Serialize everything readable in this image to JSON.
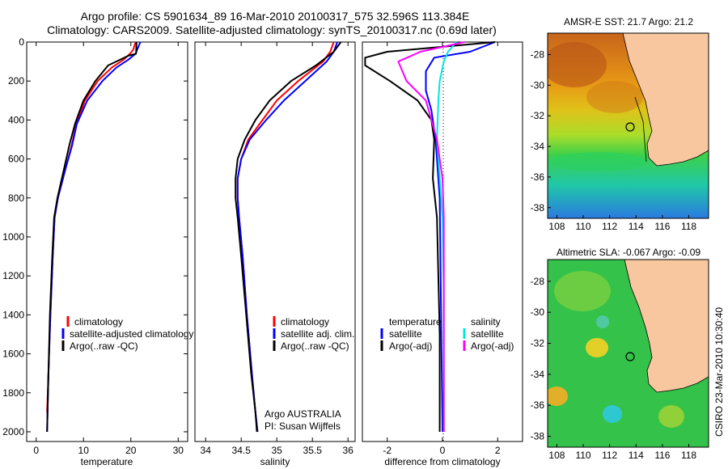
{
  "title_line1": "Argo profile: CS 5901634_89 16-Mar-2010 20100317_575 32.596S 113.384E",
  "title_line2": "Climatology: CARS2009. Satellite-adjusted climatology: synTS_20100317.nc (0.69d later)",
  "panels": [
    {
      "xlabel": "temperature",
      "xticks": [
        "0",
        "10",
        "20",
        "30"
      ]
    },
    {
      "xlabel": "salinity",
      "xticks": [
        "34",
        "34.5",
        "35",
        "35.5",
        "36"
      ]
    },
    {
      "xlabel": "difference from climatology",
      "xticks": [
        "-2",
        "0",
        "2"
      ]
    }
  ],
  "yticks": [
    "0",
    "200",
    "400",
    "600",
    "800",
    "1000",
    "1200",
    "1400",
    "1600",
    "1800",
    "2000"
  ],
  "legend_temp": [
    "climatology",
    "satellite-adjusted climatology",
    "Argo(..raw -QC)"
  ],
  "legend_sal": [
    "climatology",
    "satellite adj. clim.",
    "Argo(..raw -QC)"
  ],
  "legend_diff": {
    "temp_head": "temperature",
    "temp_sat": "satellite",
    "temp_argo": "Argo(-adj)",
    "sal_head": "salinity",
    "sal_sat": "satellite",
    "sal_argo": "Argo(-adj)"
  },
  "annotation_line1": "Argo AUSTRALIA",
  "annotation_line2": "PI: Susan Wijffels",
  "map_sst_title": "AMSR-E SST: 21.7  Argo: 21.2",
  "map_sla_title": "Altimetric SLA: -0.067  Argo: -0.09",
  "map_xticks": [
    "108",
    "110",
    "112",
    "114",
    "116",
    "118"
  ],
  "map_sst_yticks": [
    "-28",
    "-30",
    "-32",
    "-34",
    "-36",
    "-38"
  ],
  "map_sla_yticks": [
    "-28",
    "-30",
    "-32",
    "-34",
    "-36",
    "-38"
  ],
  "credit": "CSIRO 23-Mar-2010 10:30:40",
  "colors": {
    "climatology": "#ff0000",
    "satellite": "#0000ff",
    "argo": "#000000",
    "sal_satellite": "#00e6e6",
    "sal_argo": "#ff00ff",
    "land": "#f8c79f"
  },
  "chart_data": [
    {
      "type": "line",
      "xlabel": "temperature",
      "ylabel": "",
      "xlim": [
        -2,
        32
      ],
      "ylim": [
        2050,
        0
      ],
      "series": [
        {
          "name": "climatology",
          "color": "#ff0000",
          "x": [
            21,
            20.5,
            19.8,
            18.5,
            16,
            13,
            10.3,
            8.5,
            7.5,
            6.2,
            4.6,
            3.9,
            3.5,
            3.0,
            2.6,
            2.3
          ],
          "y": [
            0,
            40,
            60,
            90,
            130,
            200,
            300,
            420,
            530,
            650,
            800,
            900,
            1100,
            1400,
            1700,
            1900
          ]
        },
        {
          "name": "satellite-adjusted climatology",
          "color": "#0000ff",
          "x": [
            22,
            21.5,
            21,
            19.5,
            17,
            14,
            10.8,
            8.6,
            7.6,
            6.2,
            4.6,
            3.9,
            3.5,
            3.0,
            2.6,
            2.3
          ],
          "y": [
            0,
            30,
            60,
            90,
            130,
            200,
            300,
            420,
            530,
            650,
            800,
            900,
            1100,
            1400,
            1700,
            2000
          ]
        },
        {
          "name": "Argo(..raw -QC)",
          "color": "#000000",
          "x": [
            21.2,
            21.1,
            19.5,
            15.2,
            12.5,
            10.0,
            8.2,
            7.0,
            5.9,
            4.5,
            3.8,
            3.4,
            2.9,
            2.6,
            2.3
          ],
          "y": [
            0,
            60,
            70,
            120,
            200,
            300,
            420,
            530,
            650,
            800,
            900,
            1100,
            1400,
            1700,
            2000
          ]
        }
      ]
    },
    {
      "type": "line",
      "xlabel": "salinity",
      "ylabel": "",
      "xlim": [
        33.85,
        36.1
      ],
      "ylim": [
        2050,
        0
      ],
      "series": [
        {
          "name": "climatology",
          "color": "#ff0000",
          "x": [
            35.8,
            35.75,
            35.65,
            35.3,
            35.0,
            34.8,
            34.6,
            34.5,
            34.45,
            34.45,
            34.47,
            34.52,
            34.58,
            34.65,
            34.7,
            34.73
          ],
          "y": [
            0,
            50,
            100,
            200,
            300,
            400,
            500,
            600,
            700,
            800,
            900,
            1100,
            1400,
            1700,
            1900,
            2000
          ]
        },
        {
          "name": "satellite adj. clim.",
          "color": "#0000ff",
          "x": [
            35.85,
            35.8,
            35.7,
            35.4,
            35.1,
            34.85,
            34.62,
            34.5,
            34.45,
            34.45,
            34.47,
            34.52,
            34.58,
            34.65,
            34.7,
            34.73
          ],
          "y": [
            0,
            50,
            100,
            200,
            300,
            400,
            500,
            600,
            700,
            800,
            900,
            1100,
            1400,
            1700,
            1900,
            2000
          ]
        },
        {
          "name": "Argo(..raw -QC)",
          "color": "#000000",
          "x": [
            35.9,
            35.8,
            35.55,
            35.2,
            34.9,
            34.7,
            34.55,
            34.45,
            34.42,
            34.42,
            34.45,
            34.5,
            34.57,
            34.64,
            34.7,
            34.72
          ],
          "y": [
            0,
            50,
            120,
            200,
            300,
            400,
            500,
            600,
            700,
            800,
            900,
            1100,
            1400,
            1700,
            1900,
            2000
          ]
        }
      ]
    },
    {
      "type": "line",
      "xlabel": "difference from climatology",
      "ylabel": "",
      "xlim": [
        -2.9,
        2.9
      ],
      "ylim": [
        2050,
        0
      ],
      "series": [
        {
          "name": "temperature satellite",
          "color": "#0000ff",
          "x": [
            1.9,
            1.0,
            -0.3,
            -0.6,
            -0.6,
            -0.4,
            -0.25,
            -0.1,
            0.0
          ],
          "y": [
            0,
            50,
            80,
            150,
            250,
            350,
            500,
            800,
            2000
          ]
        },
        {
          "name": "temperature Argo(-adj)",
          "color": "#000000",
          "x": [
            1.9,
            -2.0,
            -2.8,
            -2.8,
            -1.9,
            -0.9,
            -0.4,
            -0.3,
            -0.35,
            -0.2,
            -0.1,
            -0.1
          ],
          "y": [
            0,
            50,
            80,
            120,
            200,
            300,
            400,
            500,
            700,
            900,
            1500,
            2000
          ]
        },
        {
          "name": "salinity satellite",
          "color": "#00e6e6",
          "x": [
            0.5,
            0.2,
            0.05,
            -0.1,
            -0.15,
            -0.2,
            -0.1,
            0.0,
            0.05,
            0.05
          ],
          "y": [
            0,
            50,
            100,
            200,
            300,
            500,
            700,
            900,
            1300,
            2000
          ]
        },
        {
          "name": "salinity Argo(-adj)",
          "color": "#ff00ff",
          "x": [
            0.8,
            -0.8,
            -1.6,
            -1.3,
            -0.6,
            -0.2,
            0.0,
            0.05,
            0.05
          ],
          "y": [
            0,
            50,
            100,
            200,
            300,
            500,
            700,
            900,
            2000
          ]
        }
      ]
    }
  ]
}
